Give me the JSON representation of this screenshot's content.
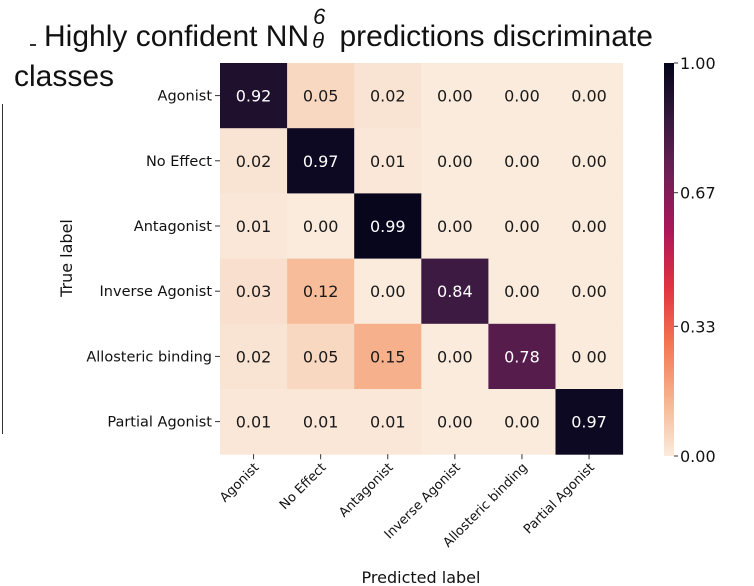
{
  "title": {
    "before": "Highly confident NN",
    "sup": "6",
    "sub": "θ",
    "after": " predictions discriminate",
    "line2": "classes"
  },
  "chart_data": {
    "type": "heatmap",
    "xlabel": "Predicted label",
    "ylabel": "True label",
    "row_labels": [
      "Agonist",
      "No Effect",
      "Antagonist",
      "Inverse Agonist",
      "Allosteric binding",
      "Partial Agonist"
    ],
    "col_labels": [
      "Agonist",
      "No Effect",
      "Antagonist",
      "Inverse Agonist",
      "Allosteric binding",
      "Partial Agonist"
    ],
    "values": [
      [
        0.92,
        0.05,
        0.02,
        0.0,
        0.0,
        0.0
      ],
      [
        0.02,
        0.97,
        0.01,
        0.0,
        0.0,
        0.0
      ],
      [
        0.01,
        0.0,
        0.99,
        0.0,
        0.0,
        0.0
      ],
      [
        0.03,
        0.12,
        0.0,
        0.84,
        0.0,
        0.0
      ],
      [
        0.02,
        0.05,
        0.15,
        0.0,
        0.78,
        0.0
      ],
      [
        0.01,
        0.01,
        0.01,
        0.0,
        0.0,
        0.97
      ]
    ],
    "cell_labels": [
      [
        "0.92",
        "0.05",
        "0.02",
        "0.00",
        "0.00",
        "0.00"
      ],
      [
        "0.02",
        "0.97",
        "0.01",
        "0.00",
        "0.00",
        "0.00"
      ],
      [
        "0.01",
        "0.00",
        "0.99",
        "0.00",
        "0.00",
        "0.00"
      ],
      [
        "0.03",
        "0.12",
        "0.00",
        "0.84",
        "0.00",
        "0.00"
      ],
      [
        "0.02",
        "0.05",
        "0.15",
        "0.00",
        "0.78",
        "0 00"
      ],
      [
        "0.01",
        "0.01",
        "0.01",
        "0.00",
        "0.00",
        "0.97"
      ]
    ],
    "colorbar": {
      "range": [
        0.0,
        1.0
      ],
      "ticks": [
        0.0,
        0.33,
        0.67,
        1.0
      ],
      "tick_labels": [
        "0.00",
        "0.33",
        "0.67",
        "1.00"
      ]
    },
    "colormap": {
      "name": "rocket_r",
      "stops": [
        "#faebdd",
        "#f6b48f",
        "#f37651",
        "#e13342",
        "#ad1759",
        "#701f57",
        "#35193e",
        "#03051a"
      ]
    }
  }
}
